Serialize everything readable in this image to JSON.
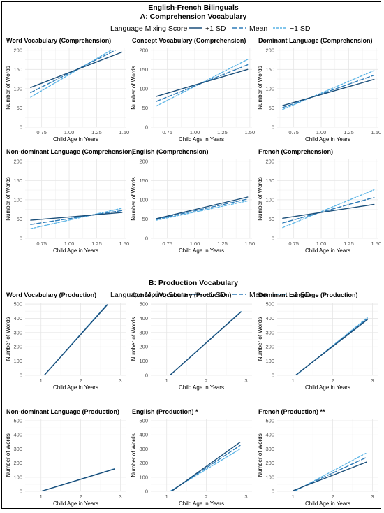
{
  "figure": {
    "title": "English-French Bilinguals",
    "colors": {
      "plus_sd": "#1b4f7a",
      "mean": "#2e7cb8",
      "minus_sd": "#5ab4e6",
      "grid": "#e6e6e6",
      "axis_text": "#4d4d4d"
    },
    "sections": [
      {
        "title": "A: Comprehension Vocabulary",
        "legend": {
          "title": "Language Mixing Score",
          "items": [
            "+1 SD",
            "Mean",
            "−1 SD"
          ]
        },
        "xlabel": "Child Age in Years",
        "ylabel": "Number of Words",
        "xlim": [
          0.6,
          1.52
        ],
        "ylim": [
          0,
          205
        ],
        "xticks": [
          0.75,
          1.0,
          1.25,
          1.5
        ],
        "xtick_labels": [
          "0.75",
          "1.00",
          "1.25",
          "1.50"
        ],
        "yticks": [
          0,
          50,
          100,
          150,
          200
        ],
        "ytick_labels": [
          "0",
          "50",
          "100",
          "150",
          "200"
        ]
      },
      {
        "title": "B: Production Vocabulary",
        "legend": {
          "title": "Language Mixing Score",
          "items": [
            "+1 SD",
            "Mean",
            "−1 SD"
          ]
        },
        "xlabel": "Child Age in Years",
        "ylabel": "Number of Words",
        "xlim": [
          0.6,
          3.15
        ],
        "ylim": [
          0,
          510
        ],
        "xticks": [
          1,
          2,
          3
        ],
        "xtick_labels": [
          "1",
          "2",
          "3"
        ],
        "yticks": [
          0,
          100,
          200,
          300,
          400,
          500
        ],
        "ytick_labels": [
          "0",
          "100",
          "200",
          "300",
          "400",
          "500"
        ]
      }
    ]
  },
  "chart_data": [
    {
      "type": "line",
      "section": 0,
      "title": "Word Vocabulary (Comprehension)",
      "series": [
        {
          "name": "+1 SD",
          "x": [
            0.65,
            1.48
          ],
          "y": [
            103,
            195
          ]
        },
        {
          "name": "Mean",
          "x": [
            0.65,
            1.42
          ],
          "y": [
            90,
            200
          ]
        },
        {
          "name": "−1 SD",
          "x": [
            0.65,
            1.38
          ],
          "y": [
            78,
            200
          ]
        }
      ]
    },
    {
      "type": "line",
      "section": 0,
      "title": "Concept Vocabulary (Comprehension)",
      "series": [
        {
          "name": "+1 SD",
          "x": [
            0.65,
            1.48
          ],
          "y": [
            80,
            150
          ]
        },
        {
          "name": "Mean",
          "x": [
            0.65,
            1.48
          ],
          "y": [
            67,
            162
          ]
        },
        {
          "name": "−1 SD",
          "x": [
            0.65,
            1.48
          ],
          "y": [
            55,
            176
          ]
        }
      ]
    },
    {
      "type": "line",
      "section": 0,
      "title": "Dominant Language (Comprehension)",
      "series": [
        {
          "name": "+1 SD",
          "x": [
            0.65,
            1.48
          ],
          "y": [
            56,
            124
          ]
        },
        {
          "name": "Mean",
          "x": [
            0.65,
            1.48
          ],
          "y": [
            51,
            135
          ]
        },
        {
          "name": "−1 SD",
          "x": [
            0.65,
            1.48
          ],
          "y": [
            46,
            147
          ]
        }
      ]
    },
    {
      "type": "line",
      "section": 0,
      "title": "Non-dominant Language (Comprehension)",
      "series": [
        {
          "name": "+1 SD",
          "x": [
            0.65,
            1.48
          ],
          "y": [
            47,
            67
          ]
        },
        {
          "name": "Mean",
          "x": [
            0.65,
            1.48
          ],
          "y": [
            36,
            72
          ]
        },
        {
          "name": "−1 SD",
          "x": [
            0.65,
            1.48
          ],
          "y": [
            25,
            78
          ]
        }
      ]
    },
    {
      "type": "line",
      "section": 0,
      "title": "English (Comprehension)",
      "series": [
        {
          "name": "+1 SD",
          "x": [
            0.65,
            1.48
          ],
          "y": [
            51,
            107
          ]
        },
        {
          "name": "Mean",
          "x": [
            0.65,
            1.48
          ],
          "y": [
            49,
            102
          ]
        },
        {
          "name": "−1 SD",
          "x": [
            0.65,
            1.48
          ],
          "y": [
            47,
            97
          ]
        }
      ]
    },
    {
      "type": "line",
      "section": 0,
      "title": "French (Comprehension)",
      "series": [
        {
          "name": "+1 SD",
          "x": [
            0.65,
            1.48
          ],
          "y": [
            52,
            88
          ]
        },
        {
          "name": "Mean",
          "x": [
            0.65,
            1.48
          ],
          "y": [
            40,
            106
          ]
        },
        {
          "name": "−1 SD",
          "x": [
            0.65,
            1.48
          ],
          "y": [
            28,
            126
          ]
        }
      ]
    },
    {
      "type": "line",
      "section": 1,
      "title": "Word Vocabulary (Production)",
      "series": [
        {
          "name": "+1 SD",
          "x": [
            1.08,
            2.67
          ],
          "y": [
            0,
            495
          ]
        },
        {
          "name": "Mean",
          "x": [
            1.08,
            2.66
          ],
          "y": [
            0,
            495
          ]
        },
        {
          "name": "−1 SD",
          "x": [
            1.08,
            2.65
          ],
          "y": [
            0,
            495
          ]
        }
      ]
    },
    {
      "type": "line",
      "section": 1,
      "title": "Concept Vocabulary (Production)",
      "series": [
        {
          "name": "+1 SD",
          "x": [
            1.08,
            2.87
          ],
          "y": [
            0,
            445
          ]
        },
        {
          "name": "Mean",
          "x": [
            1.08,
            2.87
          ],
          "y": [
            0,
            446
          ]
        },
        {
          "name": "−1 SD",
          "x": [
            1.08,
            2.87
          ],
          "y": [
            0,
            447
          ]
        }
      ]
    },
    {
      "type": "line",
      "section": 1,
      "title": "Dominant Language (Production)",
      "series": [
        {
          "name": "+1 SD",
          "x": [
            1.08,
            2.87
          ],
          "y": [
            5,
            390
          ]
        },
        {
          "name": "Mean",
          "x": [
            1.08,
            2.87
          ],
          "y": [
            3,
            397
          ]
        },
        {
          "name": "−1 SD",
          "x": [
            1.08,
            2.87
          ],
          "y": [
            1,
            405
          ]
        }
      ]
    },
    {
      "type": "line",
      "section": 1,
      "title": "Non-dominant Language (Production)",
      "series": [
        {
          "name": "+1 SD",
          "x": [
            1.0,
            2.85
          ],
          "y": [
            0,
            158
          ]
        },
        {
          "name": "Mean",
          "x": [
            1.0,
            2.85
          ],
          "y": [
            0,
            159
          ]
        },
        {
          "name": "−1 SD",
          "x": [
            1.0,
            2.85
          ],
          "y": [
            0,
            160
          ]
        }
      ]
    },
    {
      "type": "line",
      "section": 1,
      "title": "English (Production) *",
      "series": [
        {
          "name": "+1 SD",
          "x": [
            1.12,
            2.85
          ],
          "y": [
            0,
            348
          ]
        },
        {
          "name": "Mean",
          "x": [
            1.1,
            2.85
          ],
          "y": [
            0,
            325
          ]
        },
        {
          "name": "−1 SD",
          "x": [
            1.08,
            2.85
          ],
          "y": [
            0,
            300
          ]
        }
      ]
    },
    {
      "type": "line",
      "section": 1,
      "title": "French (Production) **",
      "series": [
        {
          "name": "+1 SD",
          "x": [
            1.0,
            2.85
          ],
          "y": [
            5,
            207
          ]
        },
        {
          "name": "Mean",
          "x": [
            1.0,
            2.85
          ],
          "y": [
            0,
            240
          ]
        },
        {
          "name": "−1 SD",
          "x": [
            1.0,
            2.85
          ],
          "y": [
            -5,
            272
          ]
        }
      ]
    }
  ]
}
